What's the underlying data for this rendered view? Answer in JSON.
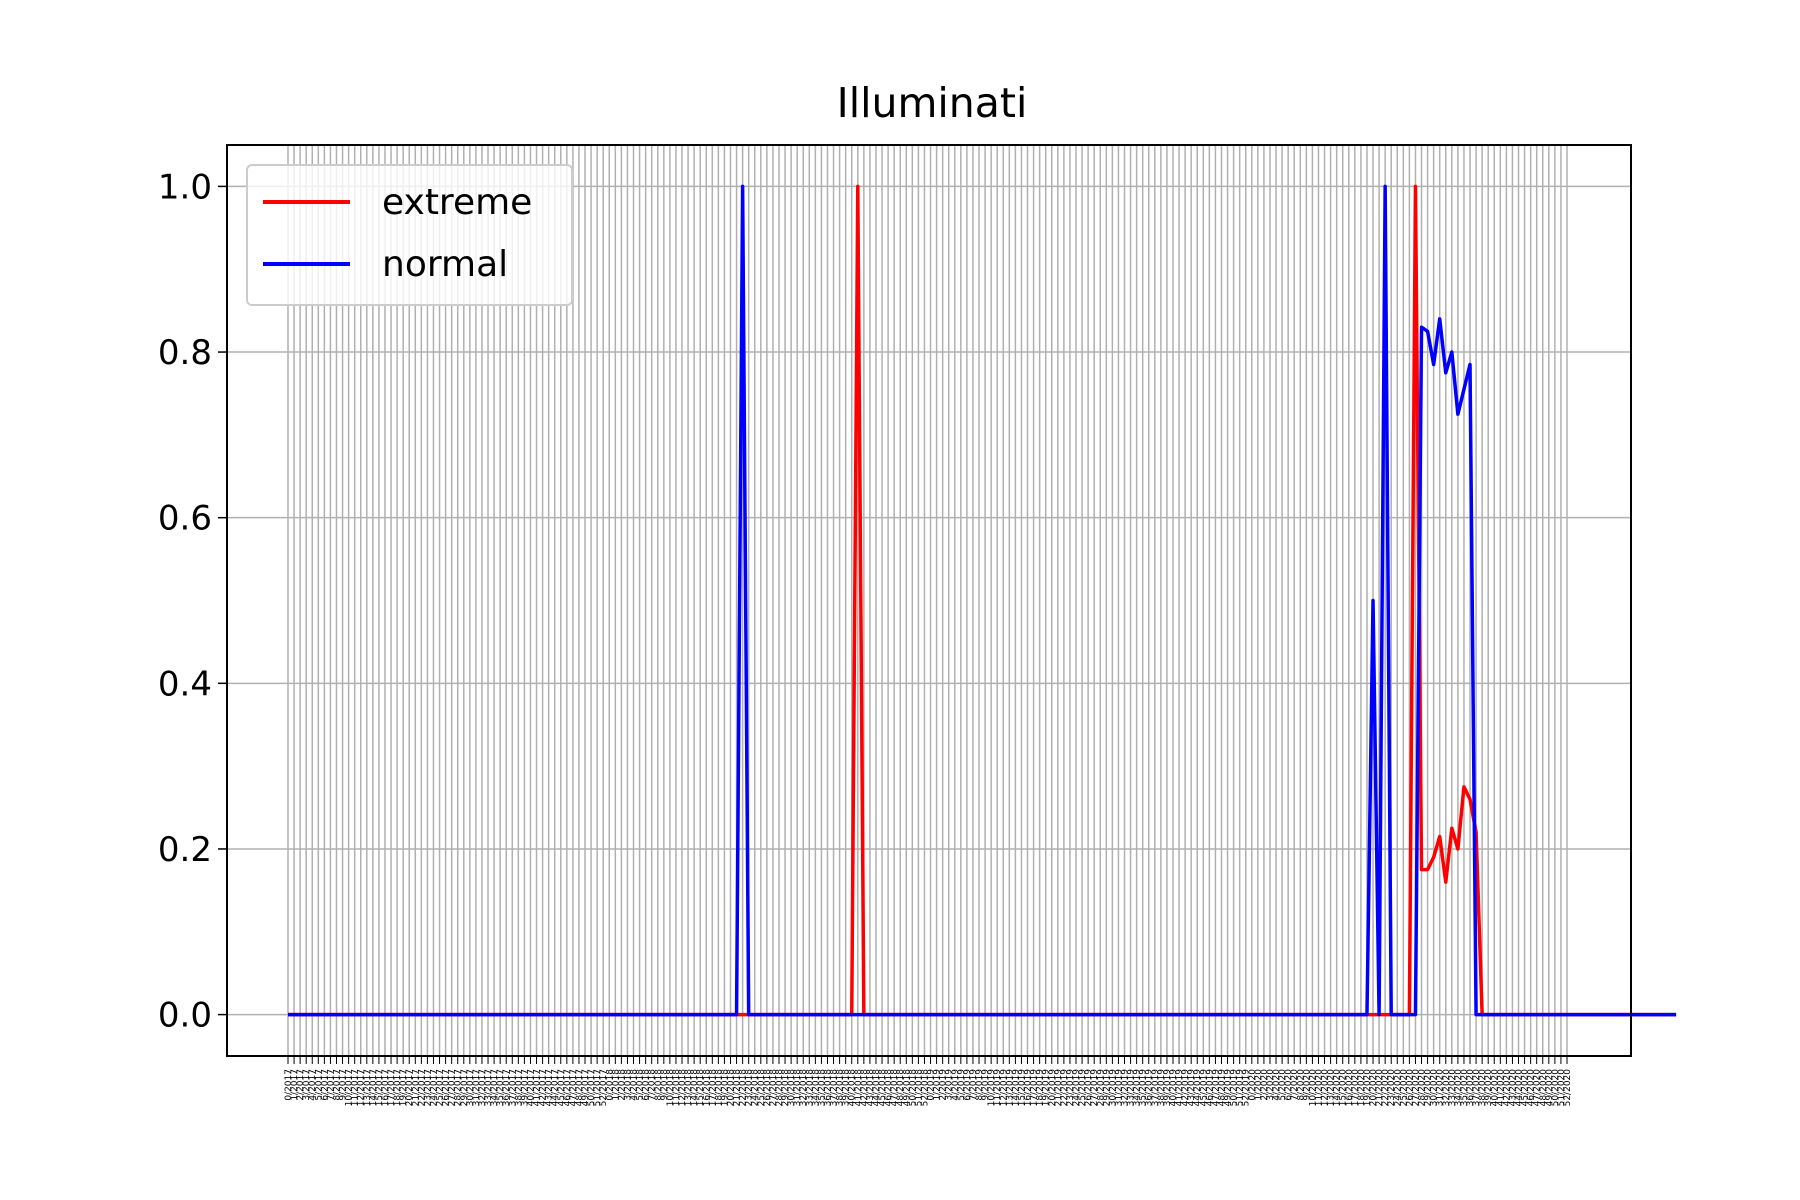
{
  "chart_data": {
    "type": "line",
    "title": "Illuminati",
    "xlabel": "",
    "ylabel": "",
    "x_start_week": 0,
    "x_start_year": 2017,
    "x_end_week": 52,
    "x_end_year": 2020,
    "ylim": [
      -0.05,
      1.05
    ],
    "yticks": [
      "0.0",
      "0.2",
      "0.4",
      "0.6",
      "0.8",
      "1.0"
    ],
    "ytick_values": [
      0.0,
      0.2,
      0.4,
      0.6,
      0.8,
      1.0
    ],
    "grid": true,
    "legend_position": "upper-left",
    "series": [
      {
        "name": "extreme",
        "color": "#ff0000",
        "points": [
          [
            0,
            0
          ],
          [
            75,
            0
          ],
          [
            76,
            0
          ],
          [
            77,
            0
          ],
          [
            93,
            0
          ],
          [
            94,
            1
          ],
          [
            95,
            0
          ],
          [
            180,
            0
          ],
          [
            181,
            0
          ],
          [
            182,
            0
          ],
          [
            183,
            0
          ],
          [
            184,
            0
          ],
          [
            185,
            0
          ],
          [
            186,
            1
          ],
          [
            187,
            0.175
          ],
          [
            188,
            0.175
          ],
          [
            189,
            0.19
          ],
          [
            190,
            0.215
          ],
          [
            191,
            0.16
          ],
          [
            192,
            0.225
          ],
          [
            193,
            0.2
          ],
          [
            194,
            0.275
          ],
          [
            195,
            0.26
          ],
          [
            196,
            0.22
          ],
          [
            197,
            0
          ],
          [
            229,
            0
          ]
        ]
      },
      {
        "name": "normal",
        "color": "#0000ff",
        "points": [
          [
            0,
            0
          ],
          [
            74,
            0
          ],
          [
            75,
            1
          ],
          [
            76,
            0
          ],
          [
            178,
            0
          ],
          [
            179,
            0.5
          ],
          [
            180,
            0
          ],
          [
            181,
            1
          ],
          [
            182,
            0
          ],
          [
            185,
            0
          ],
          [
            186,
            0
          ],
          [
            187,
            0.83
          ],
          [
            188,
            0.825
          ],
          [
            189,
            0.785
          ],
          [
            190,
            0.84
          ],
          [
            191,
            0.775
          ],
          [
            192,
            0.8
          ],
          [
            193,
            0.725
          ],
          [
            194,
            0.755
          ],
          [
            195,
            0.785
          ],
          [
            196,
            0.0
          ],
          [
            229,
            0
          ]
        ]
      }
    ]
  }
}
